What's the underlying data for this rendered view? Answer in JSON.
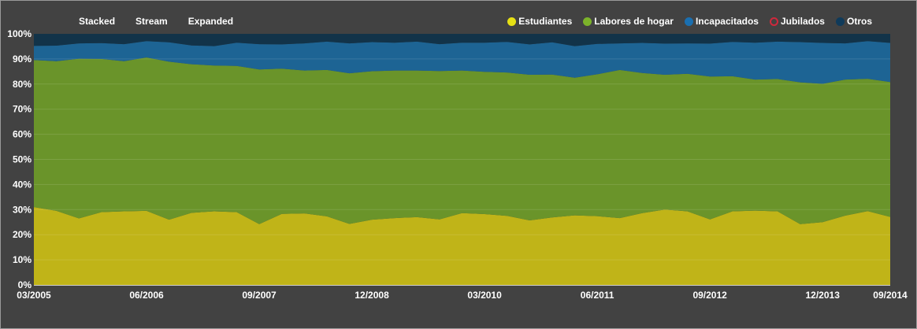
{
  "controls": {
    "stacked": "Stacked",
    "stream": "Stream",
    "expanded": "Expanded"
  },
  "legend": [
    {
      "label": "Estudiantes",
      "color": "#e6e014",
      "filled": true
    },
    {
      "label": "Labores de hogar",
      "color": "#7cb32a",
      "filled": true
    },
    {
      "label": "Incapacitados",
      "color": "#1a6fb0",
      "filled": true
    },
    {
      "label": "Jubilados",
      "color": "#d0283c",
      "filled": false
    },
    {
      "label": "Otros",
      "color": "#0f3a5a",
      "filled": true
    }
  ],
  "chart_data": {
    "type": "area",
    "mode": "expanded",
    "ylim": [
      0,
      100
    ],
    "y_ticks": [
      "0%",
      "10%",
      "20%",
      "30%",
      "40%",
      "50%",
      "60%",
      "70%",
      "80%",
      "90%",
      "100%"
    ],
    "x_tick_labels": [
      "03/2005",
      "06/2006",
      "09/2007",
      "12/2008",
      "03/2010",
      "06/2011",
      "09/2012",
      "12/2013",
      "09/2014"
    ],
    "x_tick_index": [
      0,
      5,
      10,
      15,
      20,
      25,
      30,
      35,
      38
    ],
    "grid": true,
    "legend_position": "top-right",
    "x": [
      "03/2005",
      "06/2005",
      "09/2005",
      "12/2005",
      "03/2006",
      "06/2006",
      "09/2006",
      "12/2006",
      "03/2007",
      "06/2007",
      "09/2007",
      "12/2007",
      "03/2008",
      "06/2008",
      "09/2008",
      "12/2008",
      "03/2009",
      "06/2009",
      "09/2009",
      "12/2009",
      "03/2010",
      "06/2010",
      "09/2010",
      "12/2010",
      "03/2011",
      "06/2011",
      "09/2011",
      "12/2011",
      "03/2012",
      "06/2012",
      "09/2012",
      "12/2012",
      "03/2013",
      "06/2013",
      "09/2013",
      "12/2013",
      "03/2014",
      "06/2014",
      "09/2014"
    ],
    "colors": {
      "Estudiantes": "#c0b418",
      "Labores de hogar": "#6a942a",
      "Incapacitados": "#1d6494",
      "Jubilados": "#d0283c",
      "Otros": "#123349"
    },
    "series": [
      {
        "name": "Estudiantes",
        "values": [
          31,
          29.5,
          26.5,
          29,
          29.3,
          29.5,
          26,
          28.7,
          29.3,
          29,
          24.2,
          28.3,
          28.5,
          27.3,
          24.3,
          26,
          26.6,
          27,
          26.1,
          28.6,
          28.2,
          27.5,
          25.7,
          26.9,
          27.7,
          27.4,
          26.6,
          28.6,
          30,
          29.3,
          26.1,
          29.3,
          29.6,
          29.3,
          24.2,
          25,
          27.6,
          29.4,
          27.1
        ]
      },
      {
        "name": "Labores de hogar",
        "values": [
          58.6,
          59.6,
          63.6,
          61,
          59.8,
          61.1,
          62.9,
          59.2,
          58.1,
          58.2,
          61.6,
          57.8,
          56.9,
          58.3,
          60,
          59.1,
          58.8,
          58.4,
          59.1,
          56.8,
          56.7,
          57.1,
          58,
          56.9,
          54.8,
          56.5,
          59,
          55.8,
          53.7,
          54.8,
          56.9,
          53.8,
          52.2,
          52.7,
          56.5,
          55.1,
          54.2,
          52.7,
          53.7
        ]
      },
      {
        "name": "Incapacitados",
        "values": [
          5.6,
          6.2,
          6.1,
          6.3,
          6.8,
          6.5,
          7.7,
          7.5,
          7.7,
          9.3,
          10.1,
          9.7,
          10.8,
          11.3,
          11.9,
          11.6,
          11.1,
          11.5,
          10.7,
          11.1,
          11.6,
          12.2,
          12.1,
          12.8,
          12.6,
          12.1,
          10.6,
          12,
          12.4,
          12.1,
          13.1,
          13.7,
          14.7,
          14.9,
          16,
          16.3,
          14.4,
          15,
          15.6
        ]
      },
      {
        "name": "Jubilados",
        "values": [
          0,
          0,
          0,
          0,
          0,
          0,
          0,
          0,
          0,
          0,
          0,
          0,
          0,
          0,
          0,
          0,
          0,
          0,
          0,
          0,
          0,
          0,
          0,
          0,
          0,
          0,
          0,
          0,
          0,
          0,
          0,
          0,
          0,
          0,
          0,
          0,
          0,
          0,
          0
        ]
      },
      {
        "name": "Otros",
        "values": [
          4.8,
          4.7,
          3.8,
          3.7,
          4.1,
          2.9,
          3.4,
          4.6,
          4.9,
          3.5,
          4.1,
          4.2,
          3.8,
          3.1,
          3.8,
          3.3,
          3.5,
          3.1,
          4.1,
          3.5,
          3.5,
          3.2,
          4.2,
          3.4,
          4.9,
          4,
          3.8,
          3.6,
          3.9,
          3.8,
          3.9,
          3.2,
          3.5,
          3.1,
          3.3,
          3.6,
          3.8,
          2.9,
          3.6
        ]
      }
    ]
  }
}
